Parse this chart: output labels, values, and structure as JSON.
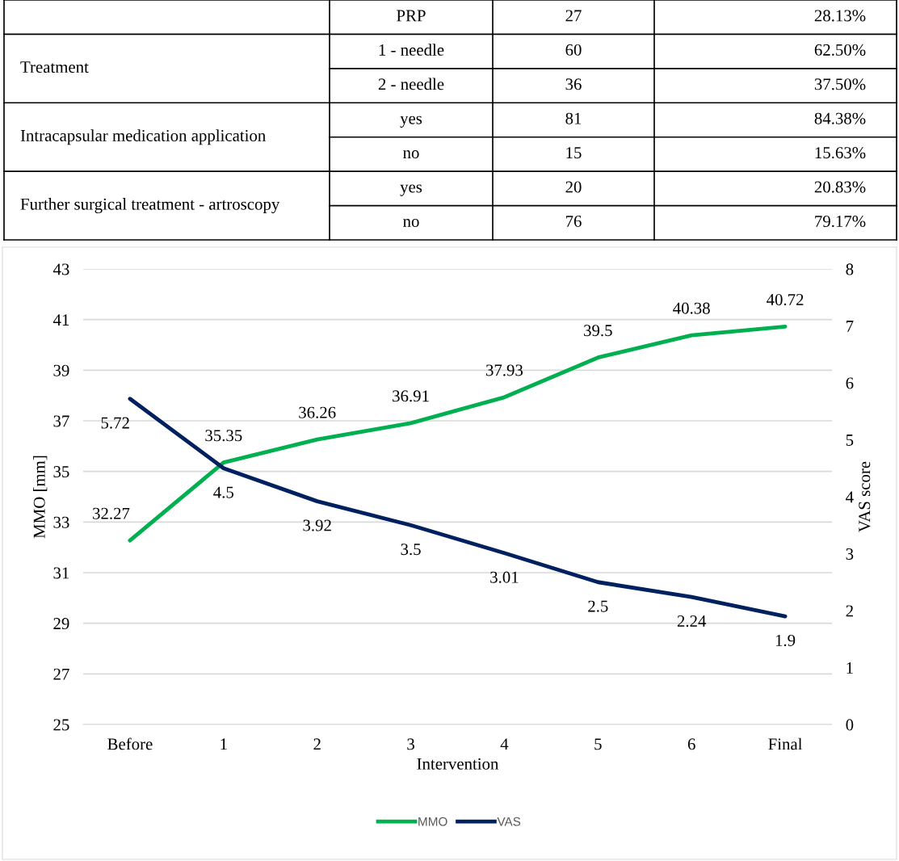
{
  "chart_data": [
    {
      "type": "other",
      "categories": [
        "PRP",
        "1 - needle",
        "2 - needle",
        "yes",
        "no",
        "yes",
        "no"
      ],
      "annotations": [
        "Treatment",
        "Intracapsular medication application",
        "Further surgical treatment - artroscopy",
        "27",
        "60",
        "36",
        "81",
        "15",
        "20",
        "76",
        "28.13%",
        "62.50%",
        "37.50%",
        "84.38%",
        "15.63%",
        "20.83%",
        "79.17%"
      ]
    },
    {
      "type": "line",
      "categories": [
        "Before",
        "1",
        "2",
        "3",
        "4",
        "5",
        "6",
        "Final"
      ],
      "xlabel": "Intervention",
      "ylabel": "MMO [mm]",
      "y2label": "VAS score",
      "series": [
        {
          "name": "MMO",
          "color": "#00b050",
          "values": [
            32.27,
            35.35,
            36.26,
            36.91,
            37.93,
            39.5,
            40.38,
            40.72
          ]
        },
        {
          "name": "VAS",
          "color": "#002060",
          "axis": "y2",
          "values": [
            5.72,
            4.5,
            3.92,
            3.5,
            3.01,
            2.5,
            2.24,
            1.9
          ]
        }
      ],
      "ylim": [
        25,
        43
      ],
      "yticks": [
        25,
        27,
        29,
        31,
        33,
        35,
        37,
        39,
        41,
        43
      ],
      "y2lim": [
        0,
        8
      ],
      "y2ticks": [
        0,
        1,
        2,
        3,
        4,
        5,
        6,
        7,
        8
      ],
      "data_labels": true,
      "grid": "y",
      "legend": "bottom",
      "marker": "none",
      "line_style": "solid"
    }
  ]
}
